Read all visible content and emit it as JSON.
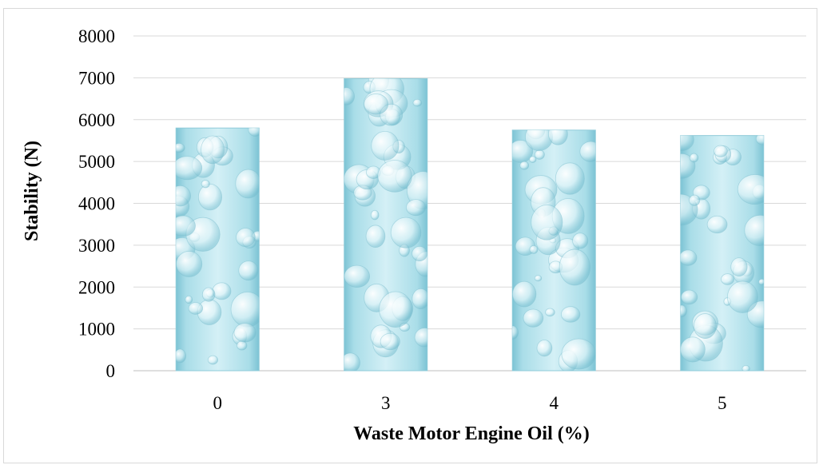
{
  "chart_data": {
    "type": "bar",
    "title": "",
    "xlabel": "Waste Motor Engine Oil (%)",
    "ylabel": "Stability (N)",
    "categories": [
      "0",
      "3",
      "4",
      "5"
    ],
    "values": [
      5800,
      6980,
      5750,
      5620
    ],
    "ylim": [
      0,
      8000
    ],
    "yticks": [
      0,
      1000,
      2000,
      3000,
      4000,
      5000,
      6000,
      7000,
      8000
    ],
    "grid": true,
    "legend": "none",
    "colors": {
      "bar_light": "#d4f0f6",
      "bar_mid": "#a9dde8",
      "bar_dark": "#7cc3d4",
      "bubble": "#e9f8fb",
      "gridline": "#d9d9d9"
    }
  }
}
